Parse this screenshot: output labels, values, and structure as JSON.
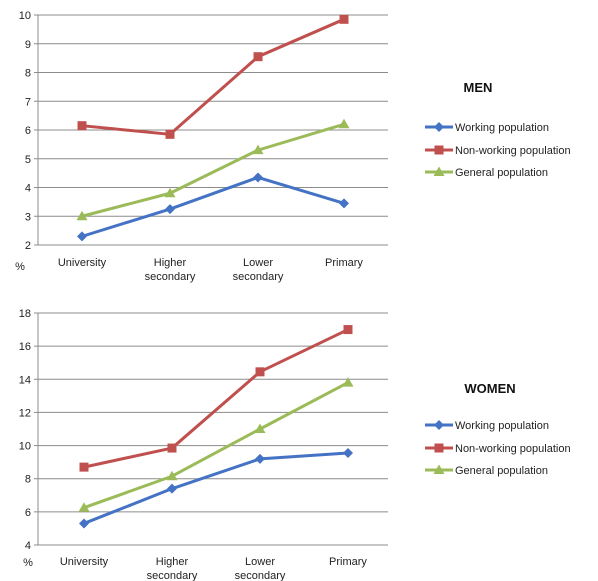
{
  "chart_data": [
    {
      "type": "line",
      "title": "MEN",
      "ylabel": "%",
      "ylim": [
        2,
        10
      ],
      "ytick_step": 1,
      "categories": [
        "University",
        "Higher secondary",
        "Lower secondary",
        "Primary"
      ],
      "series": [
        {
          "name": "Working population",
          "values": [
            2.3,
            3.25,
            4.35,
            3.45
          ],
          "color": "#4472C4",
          "marker": "diamond"
        },
        {
          "name": "Non-working population",
          "values": [
            6.15,
            5.85,
            8.55,
            9.85
          ],
          "color": "#C0504D",
          "marker": "square"
        },
        {
          "name": "General population",
          "values": [
            3.0,
            3.8,
            5.3,
            6.2
          ],
          "color": "#9BBB59",
          "marker": "triangle"
        }
      ],
      "grid": true,
      "legend": "right"
    },
    {
      "type": "line",
      "title": "WOMEN",
      "ylabel": "%",
      "ylim": [
        4,
        18
      ],
      "ytick_step": 2,
      "categories": [
        "University",
        "Higher secondary",
        "Lower secondary",
        "Primary"
      ],
      "series": [
        {
          "name": "Working population",
          "values": [
            5.3,
            7.4,
            9.2,
            9.55
          ],
          "color": "#4472C4",
          "marker": "diamond"
        },
        {
          "name": "Non-working population",
          "values": [
            8.7,
            9.85,
            14.45,
            17.0
          ],
          "color": "#C0504D",
          "marker": "square"
        },
        {
          "name": "General population",
          "values": [
            6.25,
            8.15,
            11.0,
            13.8
          ],
          "color": "#9BBB59",
          "marker": "triangle"
        }
      ],
      "grid": true,
      "legend": "right"
    }
  ]
}
